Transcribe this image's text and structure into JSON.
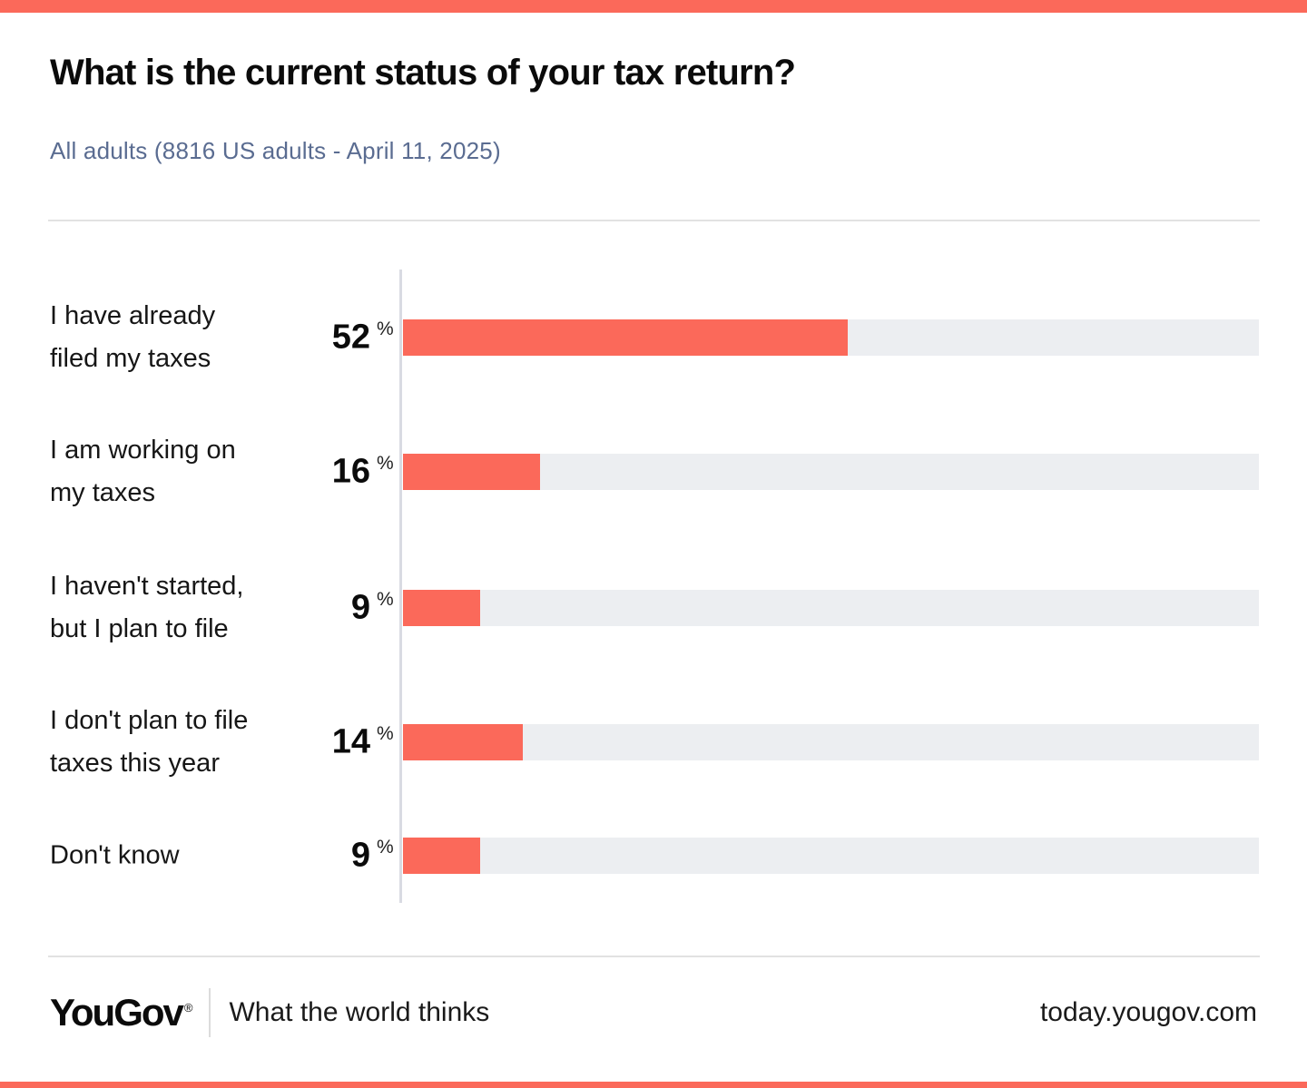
{
  "chart_data": {
    "type": "bar",
    "orientation": "horizontal",
    "title": "What is the current status of your tax return?",
    "subtitle": "All adults (8816 US adults - April 11, 2025)",
    "categories": [
      "I have already\nfiled my taxes",
      "I am working on\nmy taxes",
      "I haven't started,\nbut I plan to file",
      "I don't plan to file\ntaxes this year",
      "Don't know"
    ],
    "values": [
      52,
      16,
      9,
      14,
      9
    ],
    "unit": "%",
    "xlim": [
      0,
      100
    ],
    "grid": false,
    "legend": "none",
    "bar_color": "#fb695a",
    "track_color": "#eceef1"
  },
  "footer": {
    "logo": "YouGov",
    "registered_mark": "®",
    "tagline": "What the world thinks",
    "url": "today.yougov.com"
  },
  "colors": {
    "accent": "#fb695a",
    "bar": "#fb695a",
    "bar_track": "#eceef1",
    "axis_line": "#d9dbe2",
    "subtitle_text": "#5a6c91",
    "divider": "#e2e2e2",
    "text": "#111111"
  }
}
